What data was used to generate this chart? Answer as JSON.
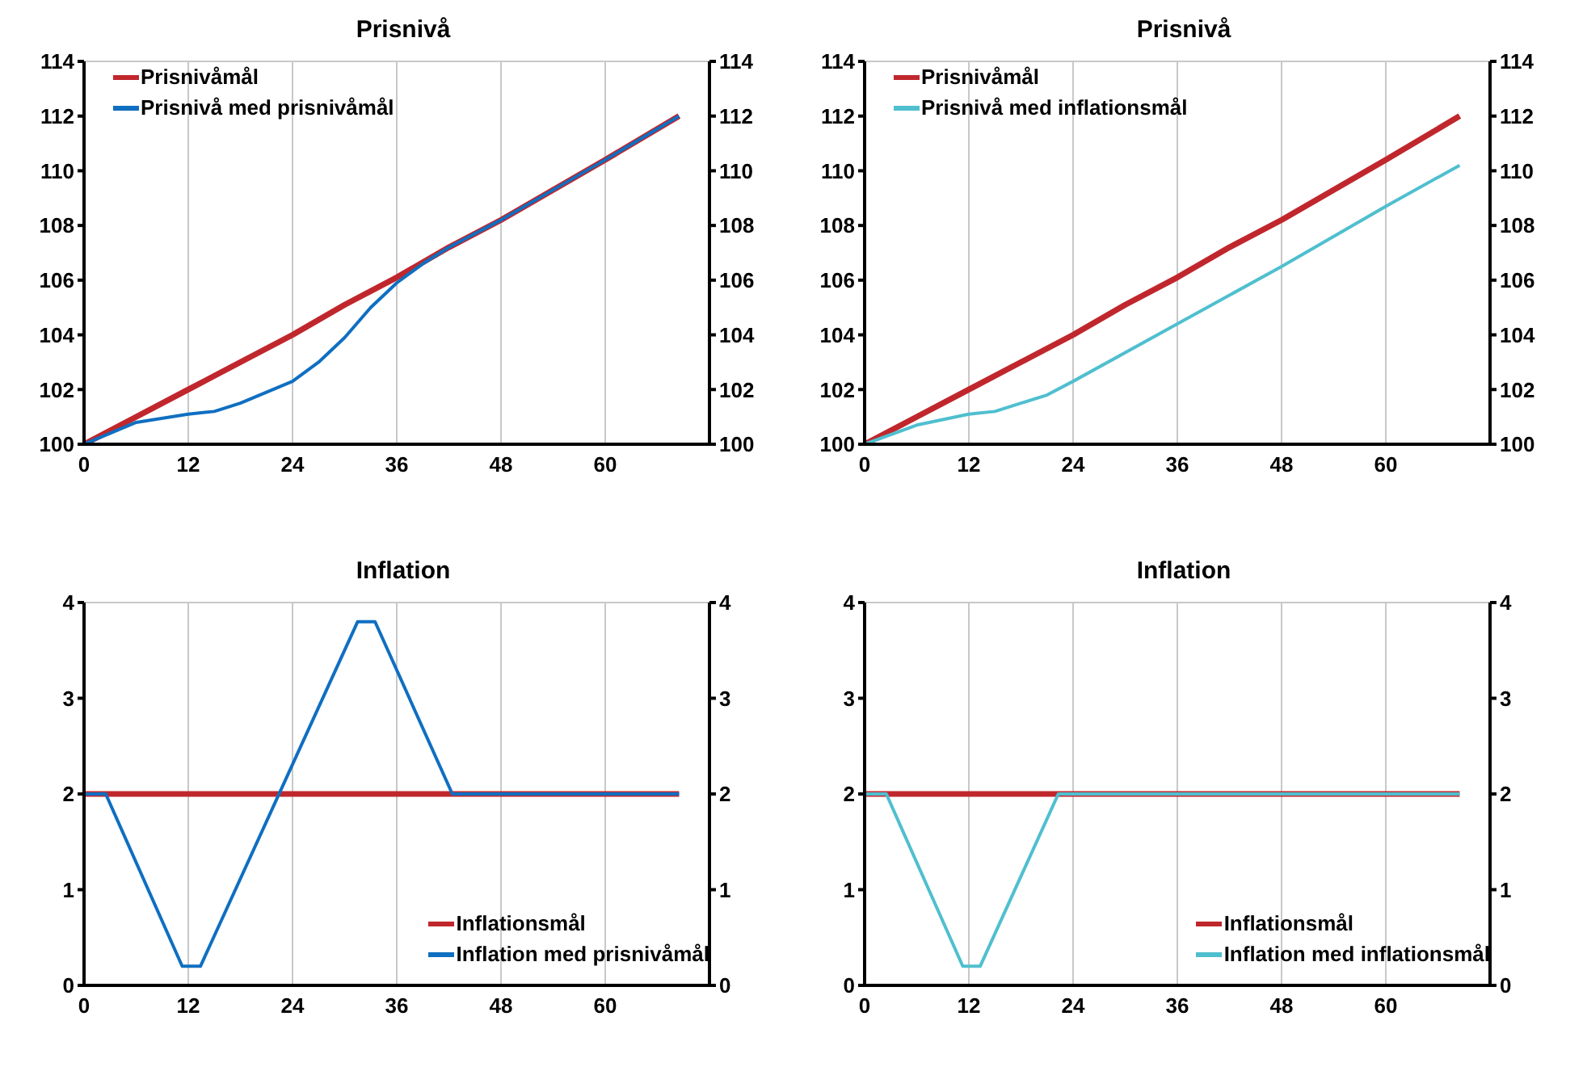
{
  "chart_data": [
    {
      "type": "line",
      "title": "Prisnivå",
      "xlim": [
        0,
        72
      ],
      "xticks": [
        0,
        12,
        24,
        36,
        48,
        60
      ],
      "ylim": [
        100,
        114
      ],
      "yticks": [
        100,
        102,
        104,
        106,
        108,
        110,
        112,
        114
      ],
      "y2lim": [
        100,
        114
      ],
      "y2ticks": [
        100,
        102,
        104,
        106,
        108,
        110,
        112,
        114
      ],
      "grid": true,
      "legend": "top left",
      "line_style": "solid",
      "series": [
        {
          "name": "Prisnivåmål",
          "color": "#c0272d",
          "x": [
            0,
            6,
            12,
            18,
            24,
            30,
            36,
            42,
            48,
            54,
            60,
            68.5
          ],
          "values": [
            100,
            101.0,
            102.0,
            103.0,
            104.0,
            105.1,
            106.1,
            107.2,
            108.2,
            109.3,
            110.4,
            112.0
          ]
        },
        {
          "name": "Prisnivå med prisnivåmål",
          "color": "#0f6fc1",
          "x": [
            0,
            6,
            12,
            15,
            18,
            21,
            24,
            27,
            30,
            33,
            36,
            39,
            42,
            48,
            54,
            60,
            68.5
          ],
          "values": [
            100,
            100.8,
            101.1,
            101.2,
            101.5,
            101.9,
            102.3,
            103.0,
            103.9,
            105.0,
            105.9,
            106.6,
            107.2,
            108.2,
            109.3,
            110.4,
            112.0
          ]
        }
      ]
    },
    {
      "type": "line",
      "title": "Prisnivå",
      "xlim": [
        0,
        72
      ],
      "xticks": [
        0,
        12,
        24,
        36,
        48,
        60
      ],
      "ylim": [
        100,
        114
      ],
      "yticks": [
        100,
        102,
        104,
        106,
        108,
        110,
        112,
        114
      ],
      "y2lim": [
        100,
        114
      ],
      "y2ticks": [
        100,
        102,
        104,
        106,
        108,
        110,
        112,
        114
      ],
      "grid": true,
      "legend": "top left",
      "line_style": "solid",
      "series": [
        {
          "name": "Prisnivåmål",
          "color": "#c0272d",
          "x": [
            0,
            6,
            12,
            18,
            24,
            30,
            36,
            42,
            48,
            54,
            60,
            68.5
          ],
          "values": [
            100,
            101.0,
            102.0,
            103.0,
            104.0,
            105.1,
            106.1,
            107.2,
            108.2,
            109.3,
            110.4,
            112.0
          ]
        },
        {
          "name": "Prisnivå med inflationsmål",
          "color": "#4fbfcf",
          "x": [
            0,
            6,
            12,
            15,
            18,
            21,
            24,
            36,
            48,
            60,
            68.5
          ],
          "values": [
            100,
            100.7,
            101.1,
            101.2,
            101.5,
            101.8,
            102.3,
            104.4,
            106.5,
            108.7,
            110.2
          ]
        }
      ]
    },
    {
      "type": "line",
      "title": "Inflation",
      "xlim": [
        0,
        72
      ],
      "xticks": [
        0,
        12,
        24,
        36,
        48,
        60
      ],
      "ylim": [
        0,
        4
      ],
      "yticks": [
        0,
        1,
        2,
        3,
        4
      ],
      "y2lim": [
        0,
        4
      ],
      "y2ticks": [
        0,
        1,
        2,
        3,
        4
      ],
      "grid": true,
      "legend": "bottom right",
      "line_style": "solid",
      "series": [
        {
          "name": "Inflationsmål",
          "color": "#c0272d",
          "x": [
            0,
            68.5
          ],
          "values": [
            2,
            2
          ]
        },
        {
          "name": "Inflation med prisnivåmål",
          "color": "#0f6fc1",
          "x": [
            0,
            2.5,
            11.3,
            13.4,
            31.5,
            33.5,
            42.4,
            68.5
          ],
          "values": [
            2,
            2,
            0.2,
            0.2,
            3.8,
            3.8,
            2,
            2
          ]
        }
      ]
    },
    {
      "type": "line",
      "title": "Inflation",
      "xlim": [
        0,
        72
      ],
      "xticks": [
        0,
        12,
        24,
        36,
        48,
        60
      ],
      "ylim": [
        0,
        4
      ],
      "yticks": [
        0,
        1,
        2,
        3,
        4
      ],
      "y2lim": [
        0,
        4
      ],
      "y2ticks": [
        0,
        1,
        2,
        3,
        4
      ],
      "grid": true,
      "legend": "bottom right",
      "line_style": "solid",
      "series": [
        {
          "name": "Inflationsmål",
          "color": "#c0272d",
          "x": [
            0,
            68.5
          ],
          "values": [
            2,
            2
          ]
        },
        {
          "name": "Inflation med inflationsmål",
          "color": "#4fbfcf",
          "x": [
            0,
            2.5,
            11.3,
            13.3,
            22.3,
            68.5
          ],
          "values": [
            2,
            2,
            0.2,
            0.2,
            2,
            2
          ]
        }
      ]
    }
  ]
}
